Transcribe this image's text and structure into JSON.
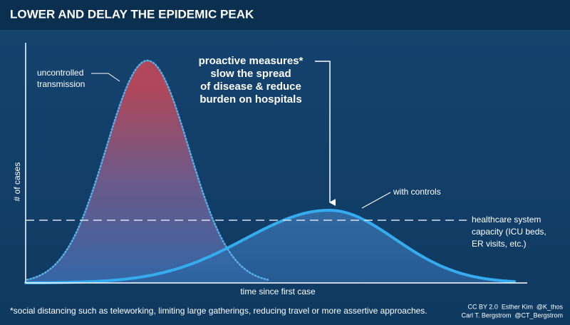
{
  "header": {
    "title": "LOWER AND DELAY THE EPIDEMIC PEAK"
  },
  "annotation": {
    "lines": [
      "proactive measures*",
      "slow the spread",
      "of disease & reduce",
      "burden on hospitals"
    ]
  },
  "uncontrolled_label": {
    "lines": [
      "uncontrolled",
      "transmission"
    ]
  },
  "controls_label": "with controls",
  "capacity_label": {
    "lines": [
      "healthcare system",
      "capacity (ICU beds,",
      "ER visits, etc.)"
    ]
  },
  "y_axis_label": "# of cases",
  "x_axis_label": "time since first case",
  "footnote": "*social distancing such as teleworking, limiting large gatherings, reducing travel or more assertive approaches.",
  "credits": [
    "CC BY 2.0  Esther Kim  @K_thos",
    "Carl T. Bergstrom  @CT_Bergstrom"
  ]
}
